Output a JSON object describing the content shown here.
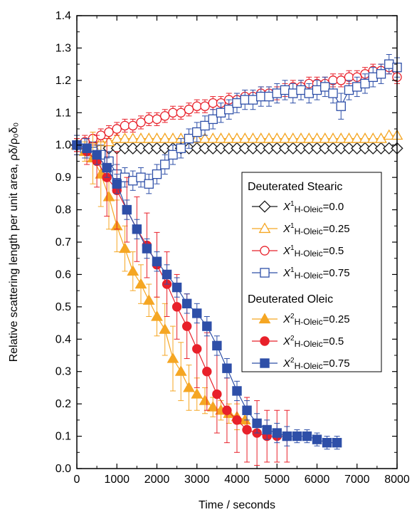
{
  "chart_data": {
    "type": "scatter",
    "title": "",
    "xlabel": "Time / seconds",
    "ylabel": "Relative scattering length per unit area, ρδ/ρ₀δ₀",
    "xlim": [
      0,
      8000
    ],
    "ylim": [
      0,
      1.4
    ],
    "xticks": [
      0,
      1000,
      2000,
      3000,
      4000,
      5000,
      6000,
      7000,
      8000
    ],
    "yticks": [
      0.0,
      0.1,
      0.2,
      0.3,
      0.4,
      0.5,
      0.6,
      0.7,
      0.8,
      0.9,
      1.0,
      1.1,
      1.2,
      1.3,
      1.4
    ],
    "ytick_labels": [
      "0.0",
      "0.1",
      "0.2",
      "0.3",
      "0.4",
      "0.5",
      "0.6",
      "0.7",
      "0.8",
      "0.9",
      "1.0",
      "1.1",
      "1.2",
      "1.3",
      "1.4"
    ],
    "grid": false,
    "legend_position": "center-right",
    "legend_groups": [
      {
        "heading": "Deuterated Stearic",
        "series_index": [
          0,
          1,
          2,
          3
        ]
      },
      {
        "heading": "Deuterated Oleic",
        "series_index": [
          4,
          5,
          6
        ]
      }
    ],
    "series": [
      {
        "name": "X¹H-Oleic=0.0",
        "legend_symbol": "X",
        "legend_sup": "1",
        "legend_sub": "H-Oleic",
        "legend_value": "=0.0",
        "marker": "diamond",
        "filled": false,
        "color": "#1a1a1a",
        "line": false,
        "x": [
          0,
          200,
          400,
          600,
          800,
          1000,
          1200,
          1400,
          1600,
          1800,
          2000,
          2200,
          2400,
          2600,
          2800,
          3000,
          3200,
          3400,
          3600,
          3800,
          4000,
          4200,
          4400,
          4600,
          4800,
          5000,
          5200,
          5400,
          5600,
          5800,
          6000,
          6200,
          6400,
          6600,
          6800,
          7000,
          7200,
          7400,
          7600,
          7800,
          8000
        ],
        "y": [
          1.0,
          1.0,
          1.0,
          0.99,
          0.99,
          0.99,
          0.99,
          0.99,
          0.99,
          0.99,
          0.99,
          0.99,
          0.99,
          0.99,
          0.99,
          0.99,
          0.99,
          0.99,
          0.99,
          0.99,
          0.99,
          0.99,
          0.99,
          0.99,
          0.99,
          0.99,
          0.99,
          0.99,
          0.99,
          0.99,
          0.99,
          0.99,
          0.99,
          0.99,
          0.99,
          0.99,
          0.99,
          0.99,
          0.99,
          0.99,
          0.99
        ],
        "err": []
      },
      {
        "name": "X¹H-Oleic=0.25",
        "legend_symbol": "X",
        "legend_sup": "1",
        "legend_sub": "H-Oleic",
        "legend_value": "=0.25",
        "marker": "triangle",
        "filled": false,
        "color": "#f5a623",
        "line": true,
        "x": [
          0,
          200,
          400,
          600,
          800,
          1000,
          1200,
          1400,
          1600,
          1800,
          2000,
          2200,
          2400,
          2600,
          2800,
          3000,
          3200,
          3400,
          3600,
          3800,
          4000,
          4200,
          4400,
          4600,
          4800,
          5000,
          5200,
          5400,
          5600,
          5800,
          6000,
          6200,
          6400,
          6600,
          6800,
          7000,
          7200,
          7400,
          7600,
          7800,
          8000
        ],
        "y": [
          1.0,
          1.0,
          1.0,
          1.01,
          1.01,
          1.02,
          1.02,
          1.02,
          1.02,
          1.02,
          1.02,
          1.02,
          1.02,
          1.02,
          1.02,
          1.02,
          1.02,
          1.02,
          1.02,
          1.02,
          1.02,
          1.02,
          1.02,
          1.02,
          1.02,
          1.02,
          1.02,
          1.02,
          1.02,
          1.02,
          1.02,
          1.02,
          1.02,
          1.02,
          1.02,
          1.02,
          1.02,
          1.02,
          1.02,
          1.03,
          1.03
        ],
        "err": []
      },
      {
        "name": "X¹H-Oleic=0.5",
        "legend_symbol": "X",
        "legend_sup": "1",
        "legend_sub": "H-Oleic",
        "legend_value": "=0.5",
        "marker": "circle",
        "filled": false,
        "color": "#e8202a",
        "line": true,
        "x": [
          0,
          200,
          400,
          600,
          800,
          1000,
          1200,
          1400,
          1600,
          1800,
          2000,
          2200,
          2400,
          2600,
          2800,
          3000,
          3200,
          3400,
          3600,
          3800,
          4000,
          4200,
          4400,
          4600,
          4800,
          5000,
          5200,
          5400,
          5600,
          5800,
          6000,
          6200,
          6400,
          6600,
          6800,
          7000,
          7200,
          7400,
          7600,
          7800,
          8000
        ],
        "y": [
          1.0,
          1.01,
          1.02,
          1.03,
          1.04,
          1.05,
          1.06,
          1.06,
          1.07,
          1.08,
          1.08,
          1.09,
          1.1,
          1.1,
          1.11,
          1.12,
          1.12,
          1.13,
          1.13,
          1.14,
          1.14,
          1.15,
          1.15,
          1.16,
          1.16,
          1.16,
          1.17,
          1.18,
          1.18,
          1.19,
          1.19,
          1.19,
          1.2,
          1.2,
          1.21,
          1.21,
          1.22,
          1.23,
          1.23,
          1.24,
          1.21
        ],
        "err": [
          0.02,
          0.02,
          0.02,
          0.02,
          0.02,
          0.02,
          0.02,
          0.02,
          0.02,
          0.02,
          0.02,
          0.02,
          0.02,
          0.02,
          0.02,
          0.02,
          0.02,
          0.02,
          0.02,
          0.02,
          0.02,
          0.02,
          0.02,
          0.02,
          0.02,
          0.02,
          0.02,
          0.02,
          0.02,
          0.02,
          0.02,
          0.02,
          0.02,
          0.02,
          0.02,
          0.02,
          0.02,
          0.02,
          0.02,
          0.02,
          0.02
        ]
      },
      {
        "name": "X¹H-Oleic=0.75",
        "legend_symbol": "X",
        "legend_sup": "1",
        "legend_sub": "H-Oleic",
        "legend_value": "=0.75",
        "marker": "square",
        "filled": false,
        "color": "#2e4fa8",
        "line": true,
        "x": [
          0,
          200,
          400,
          600,
          800,
          1000,
          1200,
          1400,
          1600,
          1800,
          2000,
          2200,
          2400,
          2600,
          2800,
          3000,
          3200,
          3400,
          3600,
          3800,
          4000,
          4200,
          4400,
          4600,
          4800,
          5000,
          5200,
          5400,
          5600,
          5800,
          6000,
          6200,
          6400,
          6600,
          6800,
          7000,
          7200,
          7400,
          7600,
          7800,
          8000
        ],
        "y": [
          1.0,
          0.99,
          0.98,
          0.97,
          0.95,
          0.91,
          0.9,
          0.89,
          0.9,
          0.88,
          0.91,
          0.94,
          0.97,
          0.99,
          1.02,
          1.04,
          1.06,
          1.08,
          1.1,
          1.11,
          1.13,
          1.14,
          1.14,
          1.15,
          1.15,
          1.16,
          1.17,
          1.16,
          1.17,
          1.16,
          1.17,
          1.18,
          1.16,
          1.12,
          1.17,
          1.18,
          1.19,
          1.21,
          1.22,
          1.25,
          1.24
        ],
        "err": [
          0.03,
          0.03,
          0.03,
          0.03,
          0.03,
          0.03,
          0.03,
          0.03,
          0.03,
          0.03,
          0.03,
          0.03,
          0.03,
          0.03,
          0.03,
          0.03,
          0.03,
          0.03,
          0.03,
          0.03,
          0.03,
          0.03,
          0.03,
          0.03,
          0.03,
          0.03,
          0.03,
          0.03,
          0.03,
          0.03,
          0.03,
          0.03,
          0.03,
          0.04,
          0.03,
          0.03,
          0.03,
          0.03,
          0.03,
          0.03,
          0.03
        ]
      },
      {
        "name": "X²H-Oleic=0.25",
        "legend_symbol": "X",
        "legend_sup": "2",
        "legend_sub": "H-Oleic",
        "legend_value": "=0.25",
        "marker": "triangle",
        "filled": true,
        "color": "#f5a623",
        "line": true,
        "x": [
          0,
          200,
          400,
          600,
          800,
          1000,
          1200,
          1400,
          1600,
          1800,
          2000,
          2200,
          2400,
          2600,
          2800,
          3000,
          3200,
          3400,
          3600,
          3800,
          4000,
          4200
        ],
        "y": [
          1.0,
          0.98,
          0.96,
          0.91,
          0.84,
          0.75,
          0.68,
          0.61,
          0.57,
          0.52,
          0.47,
          0.43,
          0.34,
          0.3,
          0.25,
          0.23,
          0.21,
          0.19,
          0.18,
          0.17,
          0.16,
          0.15
        ],
        "err": [
          0.03,
          0.03,
          0.08,
          0.1,
          0.1,
          0.08,
          0.07,
          0.06,
          0.06,
          0.05,
          0.06,
          0.08,
          0.1,
          0.09,
          0.07,
          0.05,
          0.04,
          0.03,
          0.03,
          0.03,
          0.04,
          0.03
        ]
      },
      {
        "name": "X²H-Oleic=0.5",
        "legend_symbol": "X",
        "legend_sup": "2",
        "legend_sub": "H-Oleic",
        "legend_value": "=0.5",
        "marker": "circle",
        "filled": true,
        "color": "#e8202a",
        "line": true,
        "x": [
          0,
          250,
          500,
          750,
          1000,
          1250,
          1500,
          1750,
          2000,
          2250,
          2500,
          2750,
          3000,
          3250,
          3500,
          3750,
          4000,
          4250,
          4500,
          4750,
          5000,
          5250
        ],
        "y": [
          1.0,
          0.98,
          0.95,
          0.9,
          0.86,
          0.8,
          0.74,
          0.69,
          0.63,
          0.57,
          0.5,
          0.44,
          0.37,
          0.3,
          0.23,
          0.18,
          0.15,
          0.12,
          0.11,
          0.1,
          0.1,
          0.1
        ],
        "err": [
          0.02,
          0.04,
          0.08,
          0.12,
          0.12,
          0.1,
          0.1,
          0.1,
          0.1,
          0.1,
          0.1,
          0.1,
          0.12,
          0.12,
          0.12,
          0.1,
          0.1,
          0.1,
          0.1,
          0.08,
          0.08,
          0.08
        ]
      },
      {
        "name": "X²H-Oleic=0.75",
        "legend_symbol": "X",
        "legend_sup": "2",
        "legend_sub": "H-Oleic",
        "legend_value": "=0.75",
        "marker": "square",
        "filled": true,
        "color": "#2e4fa8",
        "line": true,
        "x": [
          0,
          250,
          500,
          750,
          1000,
          1250,
          1500,
          1750,
          2000,
          2250,
          2500,
          2750,
          3000,
          3250,
          3500,
          3750,
          4000,
          4250,
          4500,
          4750,
          5000,
          5250,
          5500,
          5750,
          6000,
          6250,
          6500
        ],
        "y": [
          1.0,
          0.99,
          0.97,
          0.93,
          0.88,
          0.8,
          0.74,
          0.68,
          0.64,
          0.6,
          0.56,
          0.51,
          0.48,
          0.44,
          0.38,
          0.31,
          0.24,
          0.18,
          0.14,
          0.12,
          0.11,
          0.1,
          0.1,
          0.1,
          0.09,
          0.08,
          0.08
        ],
        "err": [
          0.03,
          0.03,
          0.03,
          0.03,
          0.03,
          0.03,
          0.03,
          0.03,
          0.03,
          0.03,
          0.03,
          0.03,
          0.03,
          0.03,
          0.03,
          0.03,
          0.03,
          0.03,
          0.03,
          0.03,
          0.03,
          0.03,
          0.02,
          0.02,
          0.02,
          0.02,
          0.02
        ]
      }
    ]
  }
}
